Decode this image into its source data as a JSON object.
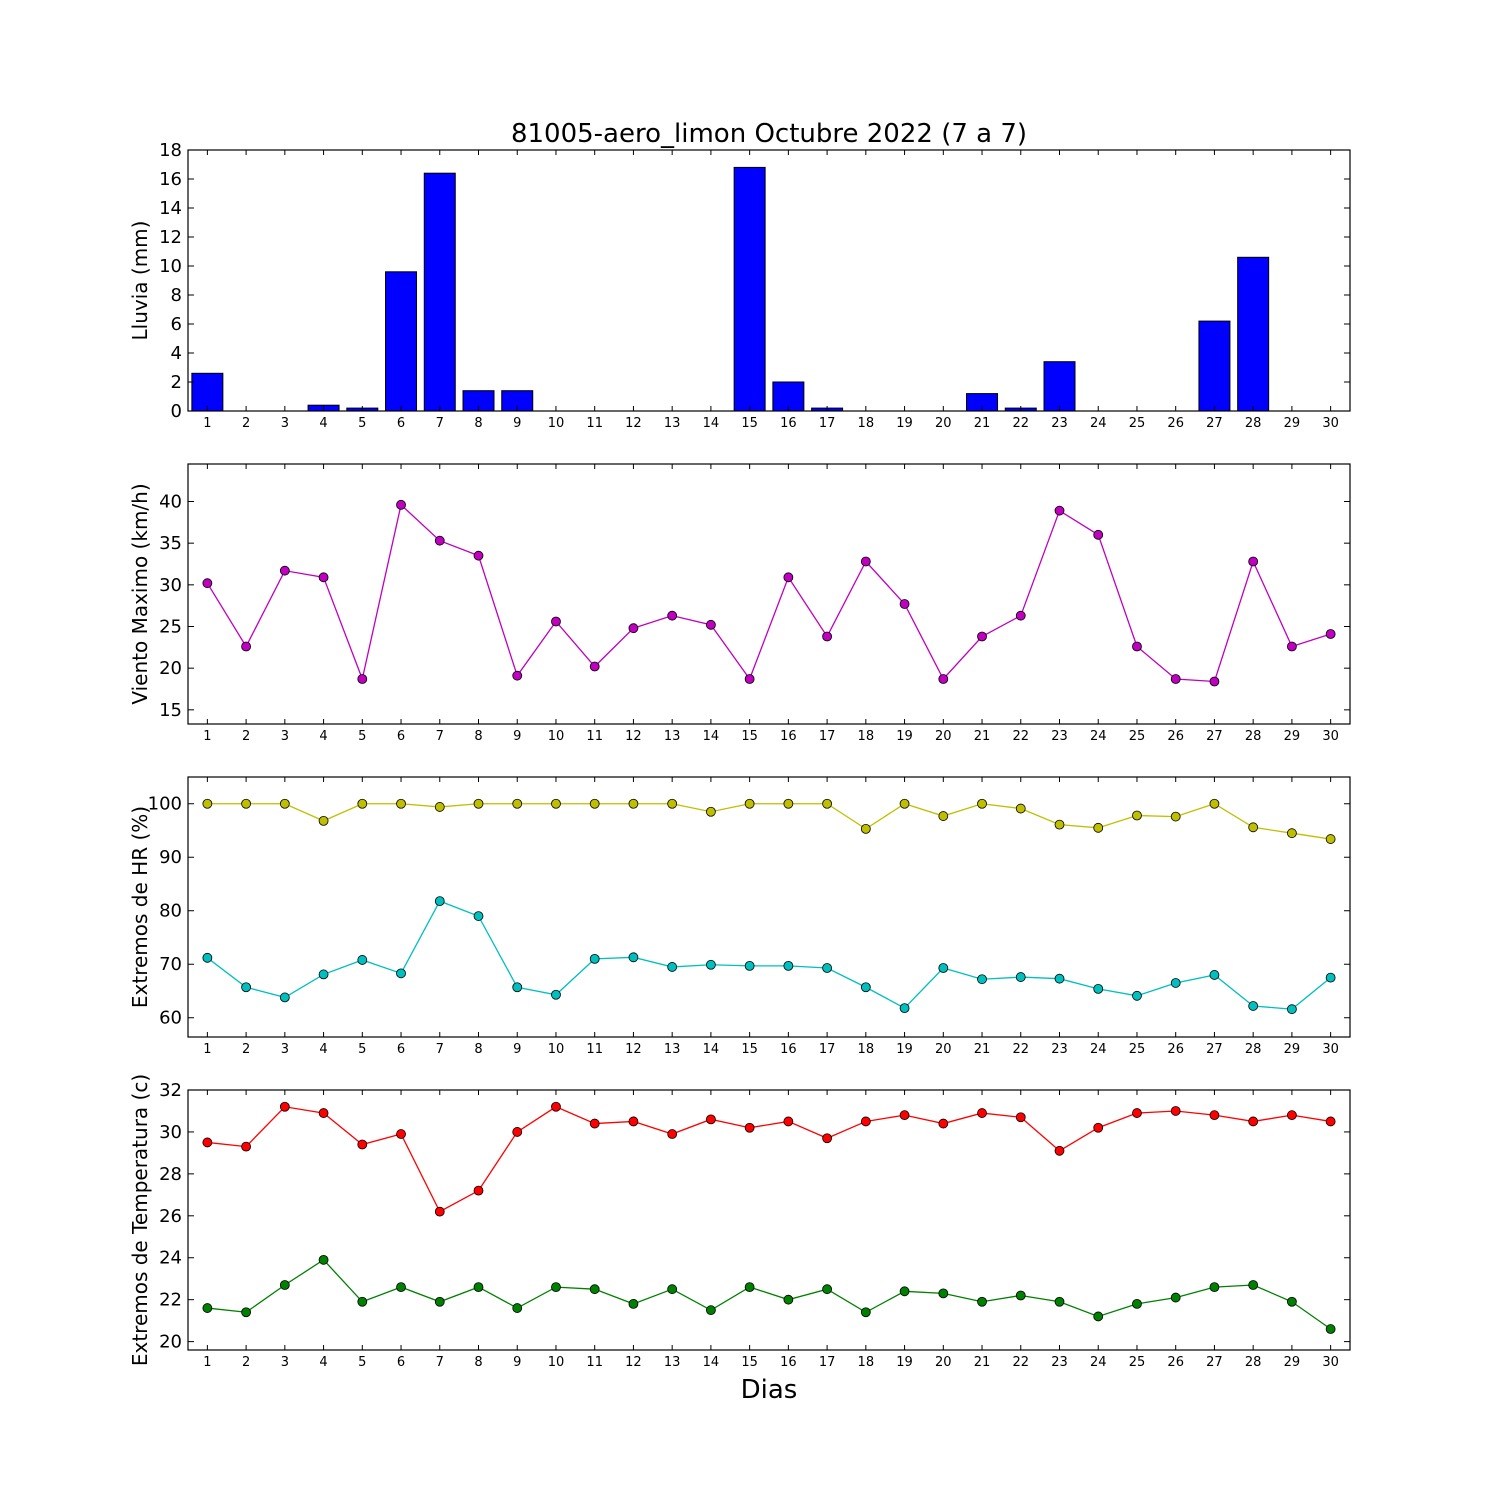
{
  "figure": {
    "title": "81005-aero_limon Octubre 2022  (7 a 7)",
    "xlabel": "Dias"
  },
  "chart_data": [
    {
      "type": "bar",
      "ylabel": "Lluvia (mm)",
      "ylim": [
        0,
        18
      ],
      "yticks": [
        0,
        2,
        4,
        6,
        8,
        10,
        12,
        14,
        16,
        18
      ],
      "x": [
        1,
        2,
        3,
        4,
        5,
        6,
        7,
        8,
        9,
        10,
        11,
        12,
        13,
        14,
        15,
        16,
        17,
        18,
        19,
        20,
        21,
        22,
        23,
        24,
        25,
        26,
        27,
        28,
        29,
        30
      ],
      "series": [
        {
          "color": "#0000ff",
          "values": [
            2.6,
            0,
            0,
            0.4,
            0.2,
            9.6,
            16.4,
            1.4,
            1.4,
            0,
            0,
            0,
            0,
            0,
            16.8,
            2.0,
            0.2,
            0,
            0,
            0,
            1.2,
            0.2,
            3.4,
            0,
            0,
            0,
            6.2,
            10.6,
            0,
            0
          ]
        }
      ]
    },
    {
      "type": "line",
      "ylabel": "Viento Maximo (km/h)",
      "ylim": [
        13.3,
        44.5
      ],
      "yticks": [
        15,
        20,
        25,
        30,
        35,
        40
      ],
      "x": [
        1,
        2,
        3,
        4,
        5,
        6,
        7,
        8,
        9,
        10,
        11,
        12,
        13,
        14,
        15,
        16,
        17,
        18,
        19,
        20,
        21,
        22,
        23,
        24,
        25,
        26,
        27,
        28,
        29,
        30
      ],
      "series": [
        {
          "color": "#bf00bf",
          "values": [
            30.2,
            22.6,
            31.7,
            30.9,
            18.7,
            39.6,
            35.3,
            33.5,
            19.1,
            25.6,
            20.2,
            24.8,
            26.3,
            25.2,
            18.7,
            30.9,
            23.8,
            32.8,
            27.7,
            18.7,
            23.8,
            26.3,
            38.9,
            36.0,
            22.6,
            18.7,
            18.4,
            32.8,
            22.6,
            24.1
          ]
        }
      ]
    },
    {
      "type": "line",
      "ylabel": "Extremos de HR (%)",
      "ylim": [
        56.4,
        105
      ],
      "yticks": [
        60,
        70,
        80,
        90,
        100
      ],
      "x": [
        1,
        2,
        3,
        4,
        5,
        6,
        7,
        8,
        9,
        10,
        11,
        12,
        13,
        14,
        15,
        16,
        17,
        18,
        19,
        20,
        21,
        22,
        23,
        24,
        25,
        26,
        27,
        28,
        29,
        30
      ],
      "series": [
        {
          "color": "#bfbf00",
          "values": [
            100,
            100,
            100,
            96.8,
            100,
            100,
            99.4,
            100,
            100,
            100,
            100,
            100,
            100,
            98.5,
            100,
            100,
            100,
            95.3,
            100,
            97.7,
            100,
            99.1,
            96.1,
            95.5,
            97.8,
            97.6,
            100,
            95.6,
            94.5,
            93.4
          ]
        },
        {
          "color": "#00bfbf",
          "values": [
            71.2,
            65.7,
            63.8,
            68.1,
            70.8,
            68.3,
            81.8,
            79.0,
            65.7,
            64.3,
            71.0,
            71.3,
            69.5,
            69.9,
            69.7,
            69.7,
            69.3,
            65.7,
            61.8,
            69.3,
            67.2,
            67.6,
            67.3,
            65.4,
            64.1,
            66.5,
            68.0,
            62.2,
            61.6,
            67.5
          ]
        }
      ]
    },
    {
      "type": "line",
      "ylabel": "Extremos de Temperatura (c)",
      "ylim": [
        19.6,
        32
      ],
      "yticks": [
        20,
        22,
        24,
        26,
        28,
        30,
        32
      ],
      "x": [
        1,
        2,
        3,
        4,
        5,
        6,
        7,
        8,
        9,
        10,
        11,
        12,
        13,
        14,
        15,
        16,
        17,
        18,
        19,
        20,
        21,
        22,
        23,
        24,
        25,
        26,
        27,
        28,
        29,
        30
      ],
      "series": [
        {
          "color": "#ff0000",
          "values": [
            29.5,
            29.3,
            31.2,
            30.9,
            29.4,
            29.9,
            26.2,
            27.2,
            30.0,
            31.2,
            30.4,
            30.5,
            29.9,
            30.6,
            30.2,
            30.5,
            29.7,
            30.5,
            30.8,
            30.4,
            30.9,
            30.7,
            29.1,
            30.2,
            30.9,
            31.0,
            30.8,
            30.5,
            30.8,
            30.5
          ]
        },
        {
          "color": "#008000",
          "values": [
            21.6,
            21.4,
            22.7,
            23.9,
            21.9,
            22.6,
            21.9,
            22.6,
            21.6,
            22.6,
            22.5,
            21.8,
            22.5,
            21.5,
            22.6,
            22.0,
            22.5,
            21.4,
            22.4,
            22.3,
            21.9,
            22.2,
            21.9,
            21.2,
            21.8,
            22.1,
            22.6,
            22.7,
            21.9,
            20.6
          ]
        }
      ]
    }
  ]
}
